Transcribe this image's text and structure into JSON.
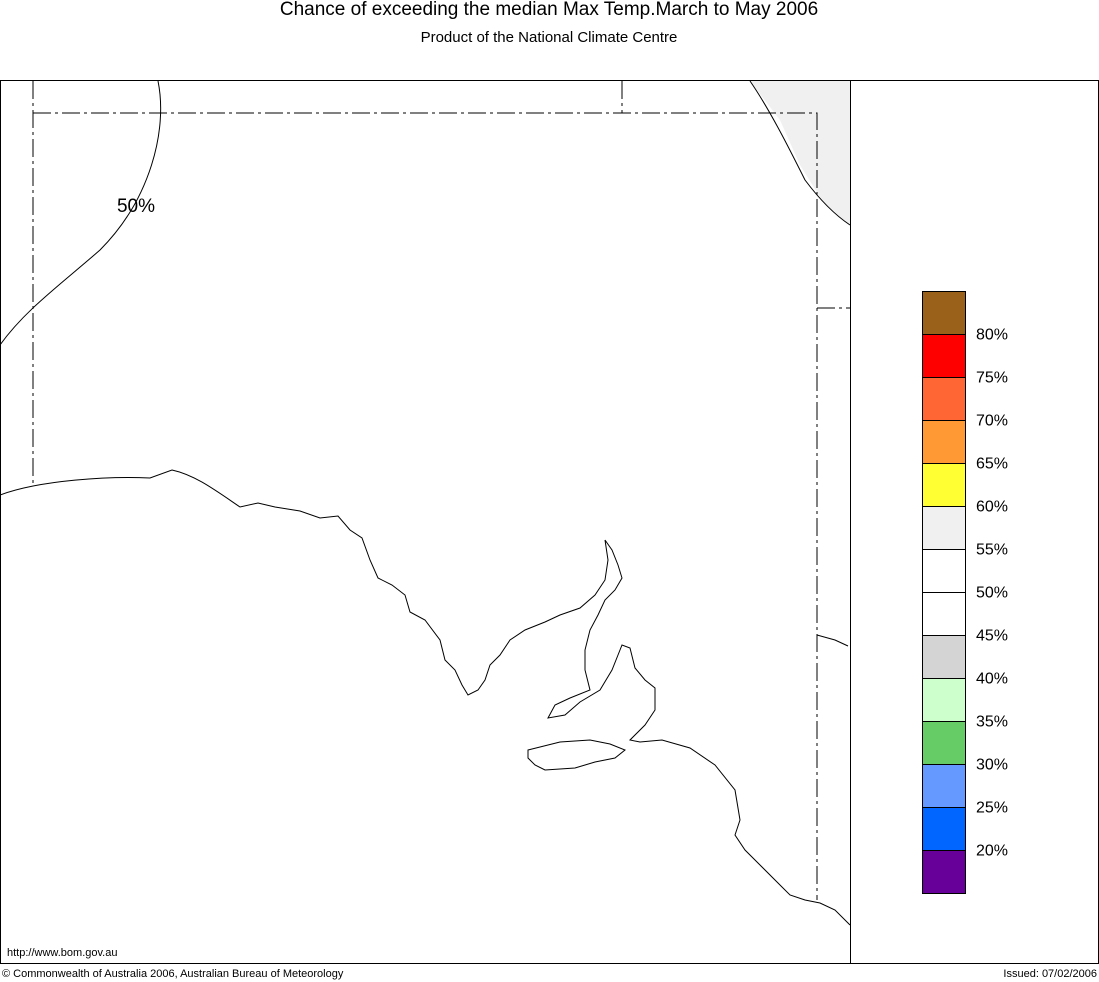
{
  "header": {
    "title": "Chance of exceeding the median Max Temp.March to May 2006",
    "subtitle": "Product of the National Climate Centre"
  },
  "map": {
    "contour_label": "50%",
    "url": "http://www.bom.gov.au"
  },
  "legend": {
    "colors": [
      "#996119",
      "#ff0000",
      "#ff6633",
      "#ff9933",
      "#ffff33",
      "#f0f0f0",
      "#ffffff",
      "#ffffff",
      "#d4d4d4",
      "#ccffcc",
      "#66cc66",
      "#6699ff",
      "#0066ff",
      "#660099"
    ],
    "labels": [
      "80%",
      "75%",
      "70%",
      "65%",
      "60%",
      "55%",
      "50%",
      "45%",
      "40%",
      "35%",
      "30%",
      "25%",
      "20%"
    ]
  },
  "footer": {
    "copyright": "© Commonwealth of Australia 2006, Australian Bureau of Meteorology",
    "issued": "Issued: 07/02/2006"
  }
}
